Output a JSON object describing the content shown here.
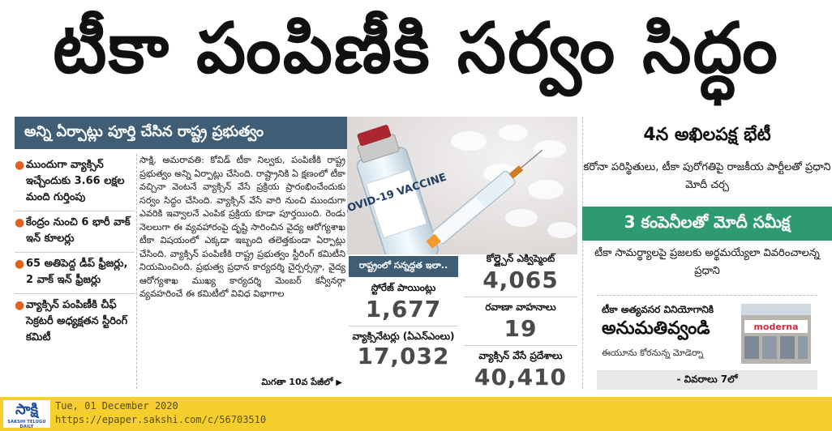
{
  "headline": "టీకా పంపిణీకి సర్వం సిద్ధం",
  "subhead": "అన్ని ఏర్పాట్లు పూర్తి చేసిన రాష్ట్ర ప్రభుత్వం",
  "bullets": [
    "ముందుగా వ్యాక్సిన్ ఇచ్చేందుకు 3.66 లక్షల మంది గుర్తింపు",
    "కేంద్రం నుంచి 6 భారీ వాక్ ఇన్ కూలర్లు",
    "65 అతిపెద్ద డీప్ ఫ్రీజర్లు, 2 వాక్ ఇన్ ఫ్రీజర్లు",
    "వ్యాక్సిన్ పంపిణీకి చీఫ్ సెక్రటరీ అధ్యక్షతన స్టీరింగ్ కమిటీ"
  ],
  "body_text": "సాక్షి, అమరావతి: కోవిడ్ టీకా నిల్వకు, పంపిణీకి రాష్ట్ర ప్రభుత్వం అన్ని ఏర్పాట్లు చేసింది. రాష్ట్రానికి ఏ క్షణంలో టీకా వచ్చినా వెంటనే వ్యాక్సిన్ వేసే ప్రక్రియ ప్రారంభించేందుకు సర్వం సిద్ధం చేసింది. వ్యాక్సిన్ వేసే వారి నుంచి ముందుగా ఎవరికి ఇవ్వాలనే ఎంపిక ప్రక్రియ కూడా పూర్తయింది. రెండు నెలలుగా ఈ వ్యవహారంపై దృష్టి సారించిన వైద్య ఆరోగ్యశాఖ టీకా విషయంలో ఎక్కడా ఇబ్బంది తలెత్తకుండా ఏర్పాట్లు చేసింది. వ్యాక్సిన్ పంపిణీకి రాష్ట్ర ప్రభుత్వం స్టీరింగ్ కమిటీని నియమించింది. ప్రభుత్వ ప్రధాన కార్యదర్శి చైర్పర్సన్గా, వైద్య ఆరోగ్యశాఖ ముఖ్య కార్యదర్శి మెంబర్ కన్వీనర్గా వ్యవహరించే ఈ కమిటీలో వివిధ విభాగాల",
  "continued": "మిగతా 10వ పేజీలో",
  "stats": {
    "label": "రాష్ట్రంలో సన్నద్ధత ఇలా..",
    "storage_label": "స్టోరేజ్ పాయింట్లు",
    "storage_value": "1,677",
    "vaccinators_label": "వ్యాక్సినేటర్లు (ఏఎన్ఎంలు)",
    "vaccinators_value": "17,032",
    "coldchain_label": "కోల్డ్చైన్ ఎక్విప్మెంట్",
    "coldchain_value": "4,065",
    "transport_label": "రవాణా వాహనాలు",
    "transport_value": "19",
    "places_label": "వ్యాక్సిన్ వేసే ప్రదేశాలు",
    "places_value": "40,410"
  },
  "photo": {
    "vial_text": "COVID-19 VACCINE",
    "vial_small": "1ml"
  },
  "right": {
    "story1_title": "4న అఖిలపక్ష భేటీ",
    "story1_body": "కరోనా పరిస్థితులు, టీకా పురోగతిపై రాజకీయ పార్టీలతో ప్రధాని మోదీ చర్చ",
    "story2_title": "3 కంపెనీలతో మోదీ సమీక్ష",
    "story2_body": "టీకా సామర్థ్యాలపై ప్రజలకు అర్థమయ్యేలా వివరించాలన్న ప్రధాని",
    "story3_small": "టీకా అత్యవసర వినియోగానికి",
    "story3_big": "అనుమతివ్వండి",
    "story3_sub": "ఈయూను కోరనున్న మోడెర్నా",
    "story3_img_text": "moderna",
    "story3_foot": "- వివరాలు 7లో"
  },
  "footer": {
    "logo": "సాక్షి",
    "logo_sub": "SAKSHI TELUGU DAILY",
    "date": "Tue, 01 December 2020",
    "url": "https://epaper.sakshi.com/c/56703510"
  },
  "colors": {
    "subhead_bg": "#3f5d75",
    "green_banner": "#2e9a72",
    "footer_bg": "#f6cf2e",
    "bullet_dot": "#e0621e",
    "logo_blue": "#1d4aa3"
  }
}
